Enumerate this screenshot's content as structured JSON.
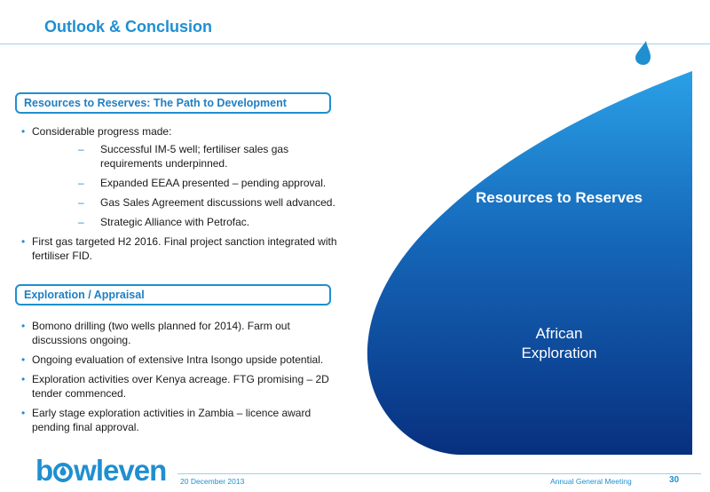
{
  "title": "Outlook & Conclusion",
  "sections": [
    {
      "heading": "Resources to Reserves:  The Path to Development",
      "bullets": [
        {
          "text": "Considerable progress made:",
          "subs": [
            "Successful IM-5 well; fertiliser sales gas requirements underpinned.",
            "Expanded EEAA presented – pending approval.",
            "Gas Sales Agreement discussions well advanced.",
            "Strategic Alliance with Petrofac."
          ]
        },
        {
          "text": "First gas targeted H2 2016. Final project sanction integrated with fertiliser FID.",
          "subs": []
        }
      ]
    },
    {
      "heading": "Exploration / Appraisal",
      "bullets": [
        {
          "text": "Bomono drilling (two wells planned for 2014). Farm out discussions ongoing.",
          "subs": []
        },
        {
          "text": "Ongoing evaluation of extensive Intra Isongo upside potential.",
          "subs": []
        },
        {
          "text": "Exploration activities over Kenya acreage. FTG promising – 2D tender commenced.",
          "subs": []
        },
        {
          "text": "Early stage exploration activities in Zambia – licence award pending final approval.",
          "subs": []
        }
      ]
    }
  ],
  "drop": {
    "big_label": "Resources to Reserves",
    "sub_label_line1": "African",
    "sub_label_line2": "Exploration"
  },
  "footer": {
    "logo_prefix": "b",
    "logo_suffix": "wleven",
    "date": "20 December 2013",
    "meeting": "Annual General Meeting",
    "page": "30"
  },
  "colors": {
    "accent": "#1f8fd0",
    "drop_light": "#2a9be0",
    "drop_dark": "#0a3a8a"
  }
}
